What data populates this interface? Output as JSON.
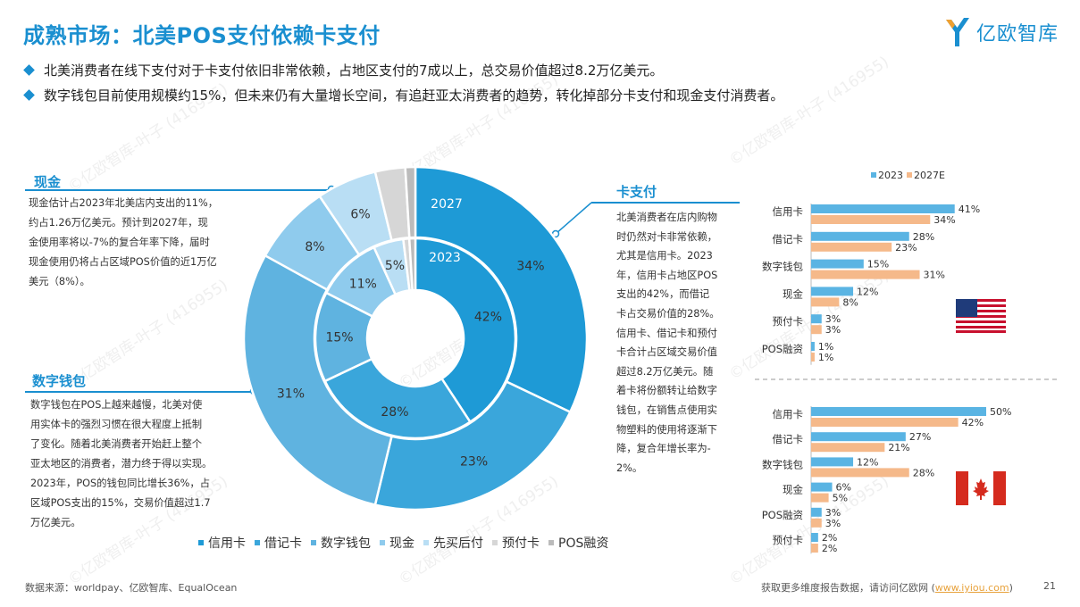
{
  "title": "成熟市场：北美POS支付依赖卡支付",
  "logo": {
    "text": "亿欧智库"
  },
  "bullets": [
    "北美消费者在线下支付对于卡支付依旧非常依赖，占地区支付的7成以上，总交易价值超过8.2万亿美元。",
    "数字钱包目前使用规模约15%，但未来仍有大量增长空间，有追赶亚太消费者的趋势，转化掉部分卡支付和现金支付消费者。"
  ],
  "left_panels": {
    "cash": {
      "head": "现金",
      "lines": [
        "现金估计占2023年北美店内支出的11%，",
        "约占1.26万亿美元。预计到2027年，现",
        "金使用率将以-7%的复合年率下降，届时",
        "现金使用仍将占占区域POS价值的近1万亿",
        "美元（8%）。"
      ]
    },
    "wallet": {
      "head": "数字钱包",
      "lines": [
        "数字钱包在POS上越来越慢，北美对使",
        "用实体卡的强烈习惯在很大程度上抵制",
        "了变化。随着北美消费者开始赶上整个",
        "亚太地区的消费者，潜力终于得以实现。",
        "2023年，POS的钱包同比增长36%，占",
        "区域POS支出的15%，交易价值超过1.7",
        "万亿美元。"
      ]
    }
  },
  "right_panel": {
    "head": "卡支付",
    "lines": [
      "北美消费者在店内购物",
      "时仍然对卡非常依赖，",
      "尤其是信用卡。2023",
      "年，信用卡占地区POS",
      "支出的42%，而借记",
      "卡占交易价值的28%。",
      "信用卡、借记卡和预付",
      "卡合计占区域交易价值",
      "超过8.2万亿美元。随",
      "着卡将份额转让给数字",
      "钱包，在销售点使用实",
      "物塑料的使用将逐渐下",
      "降，复合年增长率为-",
      "2%。"
    ]
  },
  "source": "数据来源：worldpay、亿欧智库、EqualOcean",
  "footer": {
    "prefix": "获取更多维度报告数据，请访问亿欧网 (",
    "link": "www.iyiou.com",
    "suffix": ")"
  },
  "page_number": "21",
  "watermark": "©亿欧智库-叶子 (416955)",
  "colors": {
    "accent": "#1a8fd0",
    "bar2023": "#5ab4e3",
    "bar2027": "#f5b98a"
  },
  "chart_data": [
    {
      "type": "pie",
      "subtype": "double-donut",
      "ring_labels": {
        "outer": "2027",
        "inner": "2023"
      },
      "categories": [
        "信用卡",
        "借记卡",
        "数字钱包",
        "现金",
        "先买后付",
        "预付卡",
        "POS融资"
      ],
      "legend": [
        "信用卡",
        "借记卡",
        "数字钱包",
        "现金",
        "先买后付",
        "预付卡",
        "POS融资"
      ],
      "series": [
        {
          "name": "2027",
          "values": [
            34,
            23,
            31,
            8,
            6,
            3,
            1
          ],
          "labels": [
            "34%",
            "23%",
            "31%",
            "8%",
            "6%",
            "",
            ""
          ]
        },
        {
          "name": "2023",
          "values": [
            42,
            28,
            15,
            11,
            5,
            1,
            1
          ],
          "labels": [
            "42%",
            "28%",
            "15%",
            "11%",
            "5%",
            "",
            ""
          ]
        }
      ],
      "colors": [
        "#1e9ad6",
        "#3aa6db",
        "#5fb3e0",
        "#8fcbed",
        "#b9def4",
        "#d6d6d6",
        "#bbbbbb"
      ],
      "legend_position": "bottom"
    },
    {
      "type": "bar",
      "orientation": "horizontal",
      "country": "US",
      "categories": [
        "信用卡",
        "借记卡",
        "数字钱包",
        "现金",
        "预付卡",
        "POS融资"
      ],
      "series": [
        {
          "name": "2023",
          "values": [
            41,
            28,
            15,
            12,
            3,
            1
          ]
        },
        {
          "name": "2027E",
          "values": [
            34,
            23,
            31,
            8,
            3,
            1
          ]
        }
      ],
      "legend": [
        "2023",
        "2027E"
      ],
      "legend_position": "top",
      "max": 50
    },
    {
      "type": "bar",
      "orientation": "horizontal",
      "country": "CA",
      "categories": [
        "信用卡",
        "借记卡",
        "数字钱包",
        "现金",
        "POS融资",
        "预付卡"
      ],
      "series": [
        {
          "name": "2023",
          "values": [
            50,
            27,
            12,
            6,
            3,
            2
          ]
        },
        {
          "name": "2027E",
          "values": [
            42,
            21,
            28,
            5,
            3,
            2
          ]
        }
      ],
      "max": 50
    }
  ]
}
